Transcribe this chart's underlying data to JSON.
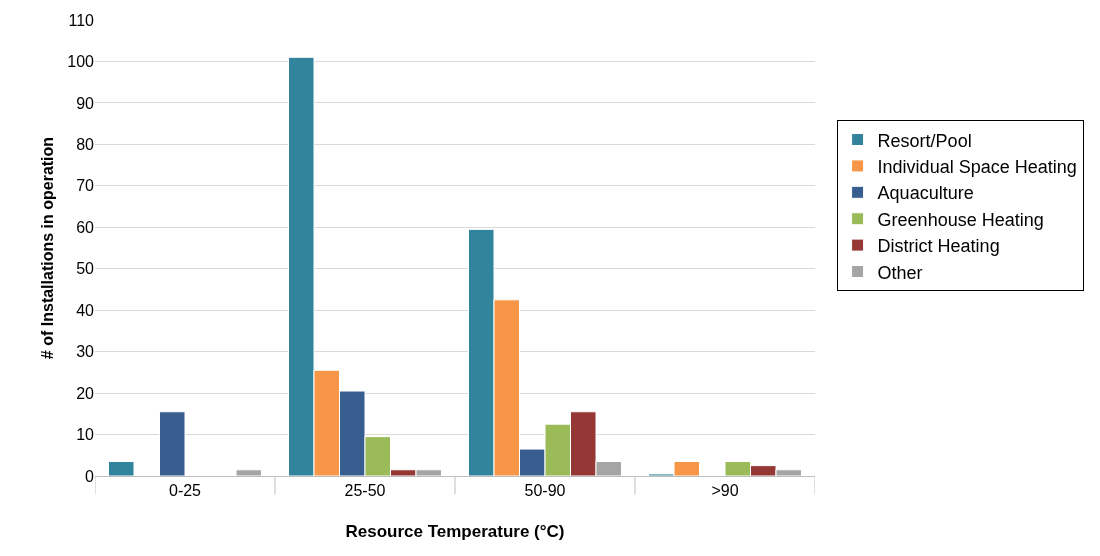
{
  "chart_data": {
    "type": "bar",
    "xlabel": "Resource Temperature (°C)",
    "ylabel": "# of Installations in operation",
    "categories": [
      "0-25",
      "25-50",
      "50-90",
      ">90"
    ],
    "series": [
      {
        "name": "Resort/Pool",
        "color": "#31849b",
        "values": [
          3.5,
          101,
          59.5,
          0.5
        ]
      },
      {
        "name": "Individual Space Heating",
        "color": "#f79646",
        "values": [
          null,
          25.5,
          42.5,
          3.5
        ]
      },
      {
        "name": "Aquaculture",
        "color": "#375e8f",
        "values": [
          15.5,
          20.5,
          6.5,
          null
        ]
      },
      {
        "name": "Greenhouse Heating",
        "color": "#9bbb59",
        "values": [
          null,
          9.5,
          12.5,
          3.5
        ]
      },
      {
        "name": "District Heating",
        "color": "#953735",
        "values": [
          null,
          1.5,
          15.5,
          2.5
        ]
      },
      {
        "name": "Other",
        "color": "#a5a5a5",
        "values": [
          1.5,
          1.5,
          3.5,
          1.5
        ]
      }
    ],
    "ylim": [
      0,
      110
    ],
    "yticks": [
      0,
      10,
      20,
      30,
      40,
      50,
      60,
      70,
      80,
      90,
      100,
      110
    ],
    "grid": "y",
    "legend": "right"
  }
}
